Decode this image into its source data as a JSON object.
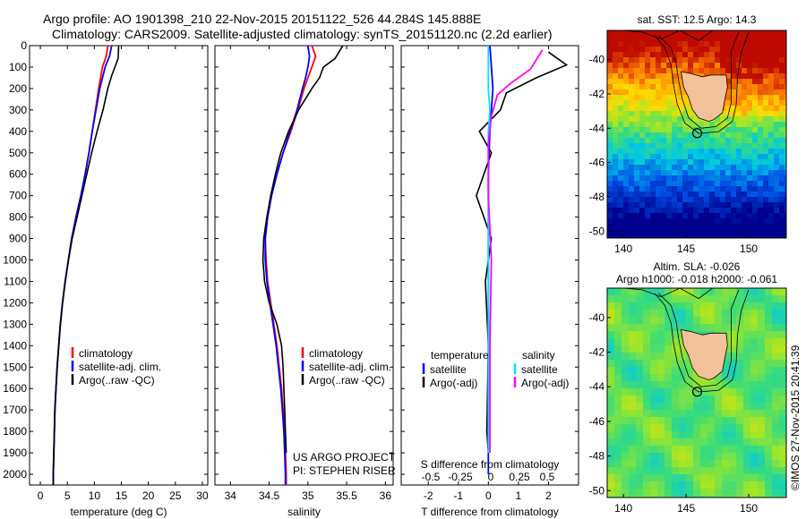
{
  "header": {
    "line1": "Argo profile: AO 1901398_210 22-Nov-2015 20151122_526 44.284S 145.888E",
    "line2": "Climatology: CARS2009. Satellite-adjusted climatology: synTS_20151120.nc (2.2d earlier)"
  },
  "colors": {
    "climatology": "#ff0000",
    "satellite": "#0000ff",
    "argo": "#000000",
    "cyan": "#00e5ff",
    "magenta": "#ff00ff",
    "land": "#f4c29a"
  },
  "chart_data": [
    {
      "type": "line",
      "title": "",
      "xlabel": "temperature (deg C)",
      "ylabel": "",
      "xlim": [
        -2,
        31
      ],
      "ylim": [
        2050,
        0
      ],
      "xticks": [
        0,
        5,
        10,
        15,
        20,
        25,
        30
      ],
      "yticks": [
        0,
        100,
        200,
        300,
        400,
        500,
        600,
        700,
        800,
        900,
        1000,
        1100,
        1200,
        1300,
        1400,
        1500,
        1600,
        1700,
        1800,
        1900,
        2000
      ],
      "legend": [
        "climatology",
        "satellite-adj. clim.",
        "Argo(..raw -QC)"
      ],
      "series": [
        {
          "name": "climatology",
          "color": "#ff0000",
          "points": [
            [
              12.5,
              0
            ],
            [
              12.2,
              50
            ],
            [
              11.5,
              100
            ],
            [
              10.8,
              200
            ],
            [
              10.2,
              300
            ],
            [
              9.6,
              400
            ],
            [
              9,
              500
            ],
            [
              8.3,
              600
            ],
            [
              7.5,
              700
            ],
            [
              6.6,
              800
            ],
            [
              5.8,
              900
            ],
            [
              5.2,
              1000
            ],
            [
              4.6,
              1100
            ],
            [
              4.1,
              1200
            ],
            [
              3.7,
              1300
            ],
            [
              3.4,
              1400
            ],
            [
              3.1,
              1500
            ],
            [
              2.9,
              1600
            ],
            [
              2.7,
              1700
            ],
            [
              2.6,
              1800
            ],
            [
              2.5,
              1900
            ],
            [
              2.4,
              2000
            ],
            [
              2.4,
              2050
            ]
          ]
        },
        {
          "name": "satellite-adj. clim.",
          "color": "#0000ff",
          "points": [
            [
              13.2,
              0
            ],
            [
              12.8,
              50
            ],
            [
              12,
              100
            ],
            [
              11,
              200
            ],
            [
              10.3,
              300
            ],
            [
              9.6,
              400
            ],
            [
              9,
              500
            ],
            [
              8.3,
              600
            ],
            [
              7.5,
              700
            ],
            [
              6.6,
              800
            ],
            [
              5.8,
              900
            ],
            [
              5.2,
              1000
            ],
            [
              4.6,
              1100
            ],
            [
              4.1,
              1200
            ],
            [
              3.7,
              1300
            ],
            [
              3.4,
              1400
            ],
            [
              3.1,
              1500
            ],
            [
              2.9,
              1600
            ],
            [
              2.7,
              1700
            ],
            [
              2.6,
              1800
            ],
            [
              2.5,
              1900
            ],
            [
              2.4,
              2000
            ],
            [
              2.4,
              2050
            ]
          ]
        },
        {
          "name": "Argo(..raw -QC)",
          "color": "#000000",
          "points": [
            [
              14.5,
              0
            ],
            [
              14.4,
              60
            ],
            [
              13.8,
              100
            ],
            [
              13.2,
              140
            ],
            [
              12.5,
              200
            ],
            [
              11.6,
              300
            ],
            [
              10.5,
              400
            ],
            [
              9.5,
              500
            ],
            [
              8.6,
              600
            ],
            [
              7.7,
              700
            ],
            [
              6.8,
              800
            ],
            [
              5.9,
              900
            ],
            [
              5.2,
              1000
            ],
            [
              4.6,
              1100
            ],
            [
              4.1,
              1200
            ],
            [
              3.7,
              1300
            ],
            [
              3.4,
              1400
            ],
            [
              3.1,
              1500
            ],
            [
              2.9,
              1600
            ],
            [
              2.7,
              1700
            ],
            [
              2.6,
              1800
            ],
            [
              2.5,
              1900
            ],
            [
              2.4,
              2000
            ],
            [
              2.4,
              2050
            ]
          ]
        }
      ]
    },
    {
      "type": "line",
      "title": "",
      "xlabel": "salinity",
      "ylabel": "",
      "xlim": [
        33.8,
        36.1
      ],
      "ylim": [
        2050,
        0
      ],
      "xticks": [
        34,
        34.5,
        35,
        35.5,
        36
      ],
      "legend": [
        "climatology",
        "satellite-adj. clim.",
        "Argo(..raw -QC)"
      ],
      "annotation": [
        "US ARGO PROJECT",
        "PI: STEPHEN RISER"
      ],
      "series": [
        {
          "name": "climatology",
          "color": "#ff0000",
          "points": [
            [
              35.05,
              0
            ],
            [
              35.1,
              50
            ],
            [
              35.05,
              100
            ],
            [
              35.0,
              150
            ],
            [
              34.95,
              200
            ],
            [
              34.87,
              300
            ],
            [
              34.78,
              400
            ],
            [
              34.68,
              500
            ],
            [
              34.6,
              600
            ],
            [
              34.53,
              700
            ],
            [
              34.48,
              800
            ],
            [
              34.45,
              900
            ],
            [
              34.46,
              1000
            ],
            [
              34.48,
              1100
            ],
            [
              34.52,
              1200
            ],
            [
              34.56,
              1300
            ],
            [
              34.6,
              1400
            ],
            [
              34.63,
              1500
            ],
            [
              34.66,
              1600
            ],
            [
              34.68,
              1700
            ],
            [
              34.7,
              1800
            ],
            [
              34.71,
              1900
            ],
            [
              34.72,
              2000
            ],
            [
              34.72,
              2050
            ]
          ]
        },
        {
          "name": "satellite-adj. clim.",
          "color": "#0000ff",
          "points": [
            [
              35.0,
              0
            ],
            [
              35.02,
              50
            ],
            [
              35.0,
              100
            ],
            [
              34.97,
              150
            ],
            [
              34.93,
              200
            ],
            [
              34.86,
              300
            ],
            [
              34.77,
              400
            ],
            [
              34.68,
              500
            ],
            [
              34.6,
              600
            ],
            [
              34.53,
              700
            ],
            [
              34.48,
              800
            ],
            [
              34.45,
              900
            ],
            [
              34.45,
              1000
            ],
            [
              34.47,
              1100
            ],
            [
              34.51,
              1200
            ],
            [
              34.55,
              1300
            ],
            [
              34.59,
              1400
            ],
            [
              34.62,
              1500
            ],
            [
              34.65,
              1600
            ],
            [
              34.67,
              1700
            ],
            [
              34.69,
              1800
            ],
            [
              34.7,
              1900
            ],
            [
              34.71,
              2000
            ],
            [
              34.71,
              2050
            ]
          ]
        },
        {
          "name": "Argo(..raw -QC)",
          "color": "#000000",
          "points": [
            [
              35.45,
              0
            ],
            [
              35.35,
              60
            ],
            [
              35.2,
              100
            ],
            [
              35.15,
              150
            ],
            [
              35.05,
              200
            ],
            [
              34.88,
              300
            ],
            [
              34.75,
              400
            ],
            [
              34.65,
              500
            ],
            [
              34.58,
              600
            ],
            [
              34.52,
              700
            ],
            [
              34.47,
              800
            ],
            [
              34.43,
              900
            ],
            [
              34.42,
              1000
            ],
            [
              34.44,
              1100
            ],
            [
              34.5,
              1200
            ],
            [
              34.6,
              1300
            ],
            [
              34.66,
              1400
            ],
            [
              34.68,
              1500
            ],
            [
              34.69,
              1600
            ],
            [
              34.7,
              1700
            ],
            [
              34.71,
              1800
            ],
            [
              34.72,
              1900
            ]
          ]
        }
      ]
    },
    {
      "type": "line",
      "title": "",
      "xlabel": "T difference from climatology",
      "xlabel2": "S difference from climatology",
      "ylabel": "",
      "xlim": [
        -2.9,
        3.0
      ],
      "ylim": [
        2050,
        0
      ],
      "xticks": [
        -2,
        -1,
        0,
        1,
        2
      ],
      "xticks2": [
        "-0.5",
        "-0.25",
        "0",
        "0.25",
        "0.5"
      ],
      "legend_titles": [
        "temperature",
        "salinity"
      ],
      "legend": [
        "satellite",
        "Argo(-adj)",
        "satellite",
        "Argo(-adj)"
      ],
      "series": [
        {
          "name": "temperature satellite",
          "color": "#0000ff",
          "points": [
            [
              0.05,
              0
            ],
            [
              0.1,
              100
            ],
            [
              0.15,
              200
            ],
            [
              0.1,
              300
            ],
            [
              0.05,
              400
            ],
            [
              0,
              600
            ],
            [
              0,
              1000
            ],
            [
              0,
              2000
            ]
          ]
        },
        {
          "name": "temperature Argo(-adj)",
          "color": "#000000",
          "points": [
            [
              2,
              30
            ],
            [
              2.6,
              90
            ],
            [
              1.6,
              150
            ],
            [
              0.6,
              220
            ],
            [
              0.4,
              300
            ],
            [
              -0.3,
              400
            ],
            [
              0.1,
              500
            ],
            [
              -0.4,
              700
            ],
            [
              0.1,
              900
            ],
            [
              -0.1,
              1100
            ],
            [
              0,
              1400
            ],
            [
              -0.05,
              1800
            ],
            [
              0,
              1900
            ]
          ]
        },
        {
          "name": "salinity satellite",
          "color": "#00e5ff",
          "points": [
            [
              0,
              0
            ],
            [
              0,
              200
            ],
            [
              0.05,
              300
            ],
            [
              0,
              400
            ],
            [
              0,
              600
            ],
            [
              0,
              1000
            ],
            [
              0,
              1900
            ]
          ]
        },
        {
          "name": "salinity Argo(-adj)",
          "color": "#ff00ff",
          "points": [
            [
              1.8,
              20
            ],
            [
              1.4,
              110
            ],
            [
              0.7,
              180
            ],
            [
              0.3,
              230
            ],
            [
              0.1,
              330
            ],
            [
              0,
              450
            ],
            [
              0,
              700
            ],
            [
              0.1,
              1000
            ],
            [
              0.05,
              1400
            ],
            [
              0.05,
              1900
            ]
          ]
        }
      ]
    },
    {
      "type": "heatmap",
      "title": "sat. SST: 12.5  Argo: 14.3",
      "xticks": [
        140,
        145,
        150
      ],
      "yticks": [
        -40,
        -42,
        -44,
        -46,
        -48,
        -50
      ],
      "float_position": {
        "lon": 145.888,
        "lat": -44.284
      }
    },
    {
      "type": "heatmap",
      "title": "Altim. SLA: -0.026",
      "subtitle": "Argo h1000: -0.018 h2000: -0.061",
      "xticks": [
        140,
        145,
        150
      ],
      "yticks": [
        -40,
        -42,
        -44,
        -46,
        -48,
        -50
      ],
      "float_position": {
        "lon": 145.888,
        "lat": -44.284
      }
    }
  ],
  "footer": {
    "stamp": "©IMOS 27-Nov-2015 20:41:39"
  }
}
